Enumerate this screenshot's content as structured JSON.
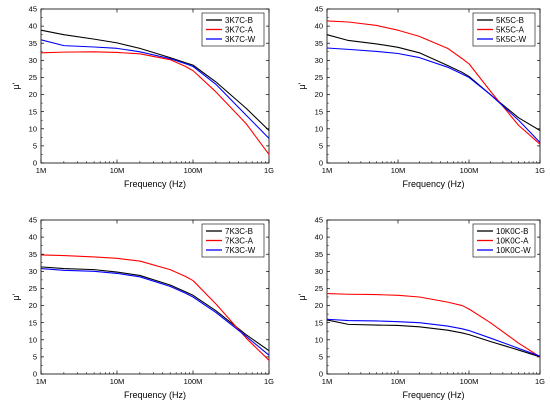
{
  "chart_data": [
    {
      "type": "line",
      "x_scale": "log",
      "xlabel": "Frequency (Hz)",
      "ylabel": "μ'",
      "xlim": [
        1000000,
        1000000000
      ],
      "ylim": [
        0,
        45
      ],
      "x_ticks": [
        1000000,
        10000000,
        100000000,
        1000000000
      ],
      "x_tick_labels": [
        "1M",
        "10M",
        "100M",
        "1G"
      ],
      "y_ticks": [
        0,
        5,
        10,
        15,
        20,
        25,
        30,
        35,
        40,
        45
      ],
      "legend_position": "top-right",
      "grid": false,
      "series": [
        {
          "name": "3K7C-B",
          "color": "#000000",
          "x": [
            1000000,
            2000000,
            5000000,
            10000000,
            20000000,
            50000000,
            80000000,
            100000000,
            200000000,
            500000000,
            1000000000
          ],
          "y": [
            38.8,
            37.5,
            36.2,
            35.1,
            33.5,
            30.8,
            29.3,
            28.6,
            23.7,
            16,
            9.5
          ]
        },
        {
          "name": "3K7C-A",
          "color": "#ff0000",
          "x": [
            1000000,
            2000000,
            5000000,
            10000000,
            20000000,
            50000000,
            80000000,
            100000000,
            200000000,
            500000000,
            1000000000
          ],
          "y": [
            32.2,
            32.4,
            32.5,
            32.3,
            31.9,
            30.2,
            28.2,
            27,
            20.8,
            11.5,
            2.5
          ]
        },
        {
          "name": "3K7C-W",
          "color": "#0000ff",
          "x": [
            1000000,
            2000000,
            5000000,
            10000000,
            20000000,
            50000000,
            80000000,
            100000000,
            200000000,
            500000000,
            1000000000
          ],
          "y": [
            36,
            34.3,
            33.9,
            33.5,
            32.5,
            30.5,
            29,
            28.2,
            23,
            14,
            7.2
          ]
        }
      ]
    },
    {
      "type": "line",
      "x_scale": "log",
      "xlabel": "Frequency (Hz)",
      "ylabel": "μ'",
      "xlim": [
        1000000,
        1000000000
      ],
      "ylim": [
        0,
        45
      ],
      "x_ticks": [
        1000000,
        10000000,
        100000000,
        1000000000
      ],
      "x_tick_labels": [
        "1M",
        "10M",
        "100M",
        "1G"
      ],
      "y_ticks": [
        0,
        5,
        10,
        15,
        20,
        25,
        30,
        35,
        40,
        45
      ],
      "legend_position": "top-right",
      "grid": false,
      "series": [
        {
          "name": "5K5C-B",
          "color": "#000000",
          "x": [
            1000000,
            2000000,
            5000000,
            10000000,
            20000000,
            50000000,
            80000000,
            100000000,
            200000000,
            500000000,
            1000000000
          ],
          "y": [
            37.5,
            35.8,
            34.8,
            33.8,
            32.2,
            28.5,
            26.5,
            25.3,
            20,
            13.2,
            9.5
          ]
        },
        {
          "name": "5K5C-A",
          "color": "#ff0000",
          "x": [
            1000000,
            2000000,
            5000000,
            10000000,
            20000000,
            50000000,
            80000000,
            100000000,
            200000000,
            500000000,
            1000000000
          ],
          "y": [
            41.5,
            41.2,
            40.2,
            38.8,
            37,
            33.5,
            30.5,
            29,
            21,
            11,
            5.5
          ]
        },
        {
          "name": "5K5C-W",
          "color": "#0000ff",
          "x": [
            1000000,
            2000000,
            5000000,
            10000000,
            20000000,
            50000000,
            80000000,
            100000000,
            200000000,
            500000000,
            1000000000
          ],
          "y": [
            33.6,
            33.2,
            32.6,
            32,
            30.8,
            28,
            26,
            25,
            20,
            12.5,
            6
          ]
        }
      ]
    },
    {
      "type": "line",
      "x_scale": "log",
      "xlabel": "Frequency (Hz)",
      "ylabel": "μ'",
      "xlim": [
        1000000,
        1000000000
      ],
      "ylim": [
        0,
        45
      ],
      "x_ticks": [
        1000000,
        10000000,
        100000000,
        1000000000
      ],
      "x_tick_labels": [
        "1M",
        "10M",
        "100M",
        "1G"
      ],
      "y_ticks": [
        0,
        5,
        10,
        15,
        20,
        25,
        30,
        35,
        40,
        45
      ],
      "legend_position": "top-right",
      "grid": false,
      "series": [
        {
          "name": "7K3C-B",
          "color": "#000000",
          "x": [
            1000000,
            2000000,
            5000000,
            10000000,
            20000000,
            50000000,
            80000000,
            100000000,
            200000000,
            500000000,
            1000000000
          ],
          "y": [
            31.3,
            30.8,
            30.5,
            29.8,
            28.8,
            26,
            24,
            23,
            18.5,
            11.5,
            6.8
          ]
        },
        {
          "name": "7K3C-A",
          "color": "#ff0000",
          "x": [
            1000000,
            2000000,
            5000000,
            10000000,
            20000000,
            50000000,
            80000000,
            100000000,
            200000000,
            500000000,
            1000000000
          ],
          "y": [
            34.8,
            34.6,
            34.2,
            33.8,
            33,
            30.5,
            28.5,
            27.3,
            20.5,
            10.5,
            4
          ]
        },
        {
          "name": "7K3C-W",
          "color": "#0000ff",
          "x": [
            1000000,
            2000000,
            5000000,
            10000000,
            20000000,
            50000000,
            80000000,
            100000000,
            200000000,
            500000000,
            1000000000
          ],
          "y": [
            30.8,
            30.3,
            30,
            29.4,
            28.4,
            25.6,
            23.6,
            22.5,
            18,
            11,
            5.5
          ]
        }
      ]
    },
    {
      "type": "line",
      "x_scale": "log",
      "xlabel": "Frequency (Hz)",
      "ylabel": "μ'",
      "xlim": [
        1000000,
        1000000000
      ],
      "ylim": [
        0,
        45
      ],
      "x_ticks": [
        1000000,
        10000000,
        100000000,
        1000000000
      ],
      "x_tick_labels": [
        "1M",
        "10M",
        "100M",
        "1G"
      ],
      "y_ticks": [
        0,
        5,
        10,
        15,
        20,
        25,
        30,
        35,
        40,
        45
      ],
      "legend_position": "top-right",
      "grid": false,
      "series": [
        {
          "name": "10K0C-B",
          "color": "#000000",
          "x": [
            1000000,
            2000000,
            5000000,
            10000000,
            20000000,
            50000000,
            80000000,
            100000000,
            200000000,
            500000000,
            1000000000
          ],
          "y": [
            15.8,
            14.5,
            14.3,
            14.2,
            13.8,
            12.8,
            12,
            11.5,
            9.5,
            7,
            5
          ]
        },
        {
          "name": "10K0C-A",
          "color": "#ff0000",
          "x": [
            1000000,
            2000000,
            5000000,
            10000000,
            20000000,
            50000000,
            80000000,
            100000000,
            200000000,
            500000000,
            1000000000
          ],
          "y": [
            23.5,
            23.3,
            23.2,
            23,
            22.5,
            21,
            20,
            19,
            15,
            9,
            5
          ]
        },
        {
          "name": "10K0C-W",
          "color": "#0000ff",
          "x": [
            1000000,
            2000000,
            5000000,
            10000000,
            20000000,
            50000000,
            80000000,
            100000000,
            200000000,
            500000000,
            1000000000
          ],
          "y": [
            16,
            15.6,
            15.5,
            15.3,
            15,
            14,
            13.2,
            12.7,
            10.5,
            7.5,
            5.2
          ]
        }
      ]
    }
  ]
}
